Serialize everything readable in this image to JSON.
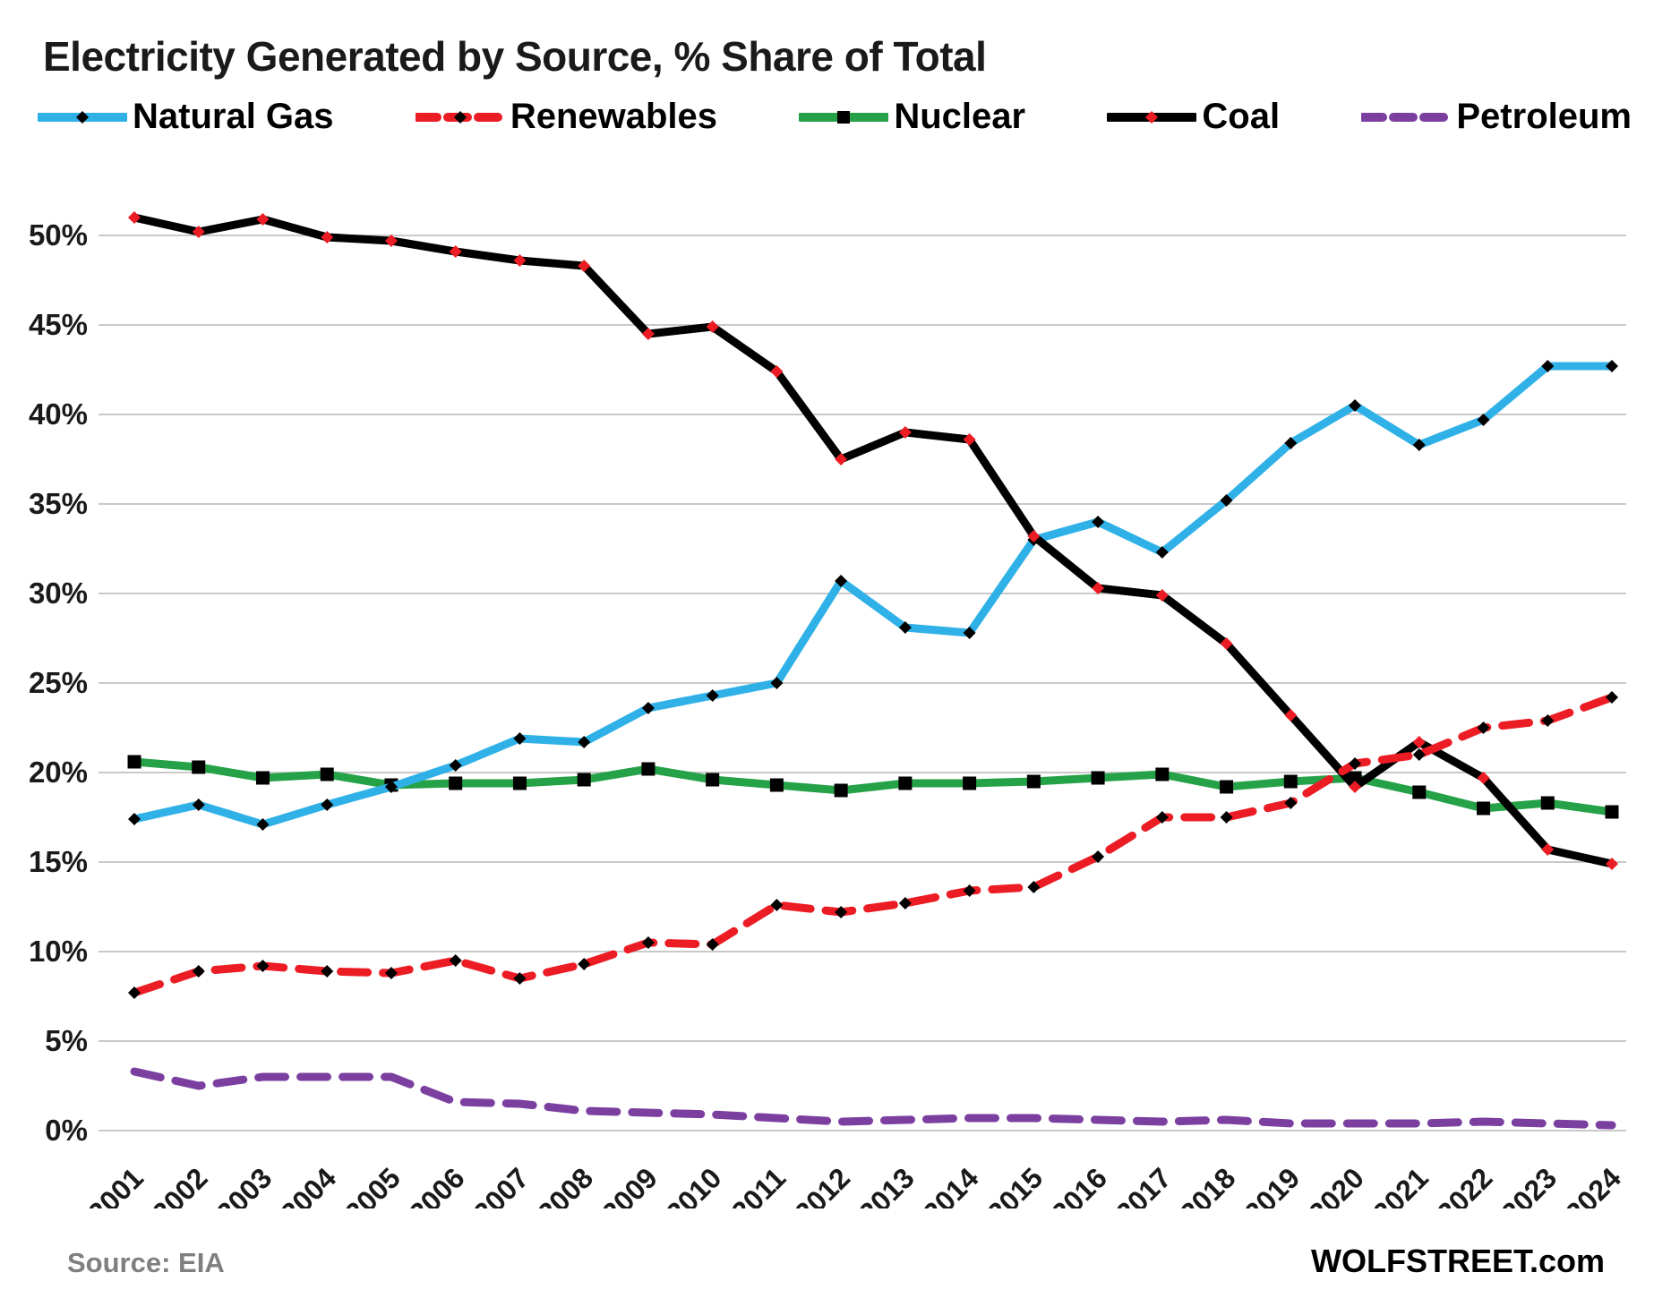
{
  "page": {
    "title": "Electricity Generated by Source, % Share of Total",
    "source_note": "Source: EIA",
    "brand": "WOLFSTREET.com"
  },
  "chart_data": {
    "type": "line",
    "title": "Electricity Generated by Source, % Share of Total",
    "xlabel": "",
    "ylabel": "% Share of Total",
    "ylim": [
      0,
      52.5
    ],
    "yticks": [
      0,
      5,
      10,
      15,
      20,
      25,
      30,
      35,
      40,
      45,
      50
    ],
    "grid": true,
    "legend_position": "top",
    "categories": [
      "2001",
      "2002",
      "2003",
      "2004",
      "2005",
      "2006",
      "2007",
      "2008",
      "2009",
      "2010",
      "2011",
      "2012",
      "2013",
      "2014",
      "2015",
      "2016",
      "2017",
      "2018",
      "2019",
      "2020",
      "2021",
      "2022",
      "2023",
      "2024"
    ],
    "series": [
      {
        "name": "Natural Gas",
        "color": "#2FB1E8",
        "dash": "solid",
        "marker": "diamond",
        "marker_color": "#000000",
        "values": [
          17.4,
          18.2,
          17.1,
          18.2,
          19.2,
          20.4,
          21.9,
          21.7,
          23.6,
          24.3,
          25.0,
          30.7,
          28.1,
          27.8,
          33.0,
          34.0,
          32.3,
          35.2,
          38.4,
          40.5,
          38.3,
          39.7,
          42.7,
          42.7
        ]
      },
      {
        "name": "Renewables",
        "color": "#EC1C24",
        "dash": "dashed",
        "marker": "diamond",
        "marker_color": "#000000",
        "values": [
          7.7,
          8.9,
          9.2,
          8.9,
          8.8,
          9.5,
          8.5,
          9.3,
          10.5,
          10.4,
          12.6,
          12.2,
          12.7,
          13.4,
          13.6,
          15.3,
          17.5,
          17.5,
          18.3,
          20.5,
          21.0,
          22.5,
          22.9,
          24.2
        ]
      },
      {
        "name": "Nuclear",
        "color": "#25A248",
        "dash": "solid",
        "marker": "square",
        "marker_color": "#000000",
        "values": [
          20.6,
          20.3,
          19.7,
          19.9,
          19.3,
          19.4,
          19.4,
          19.6,
          20.2,
          19.6,
          19.3,
          19.0,
          19.4,
          19.4,
          19.5,
          19.7,
          19.9,
          19.2,
          19.5,
          19.7,
          18.9,
          18.0,
          18.3,
          17.8
        ]
      },
      {
        "name": "Coal",
        "color": "#000000",
        "dash": "solid",
        "marker": "diamond",
        "marker_color": "#EC1C24",
        "values": [
          51.0,
          50.2,
          50.9,
          49.9,
          49.7,
          49.1,
          48.6,
          48.3,
          44.5,
          44.9,
          42.4,
          37.5,
          39.0,
          38.6,
          33.2,
          30.3,
          29.9,
          27.2,
          23.2,
          19.2,
          21.7,
          19.7,
          15.7,
          14.9
        ]
      },
      {
        "name": "Petroleum",
        "color": "#7B3FA0",
        "dash": "dashed",
        "marker": "none",
        "marker_color": "",
        "values": [
          3.3,
          2.5,
          3.0,
          3.0,
          3.0,
          1.6,
          1.5,
          1.1,
          1.0,
          0.9,
          0.7,
          0.5,
          0.6,
          0.7,
          0.7,
          0.6,
          0.5,
          0.6,
          0.4,
          0.4,
          0.4,
          0.5,
          0.4,
          0.3
        ]
      }
    ]
  }
}
